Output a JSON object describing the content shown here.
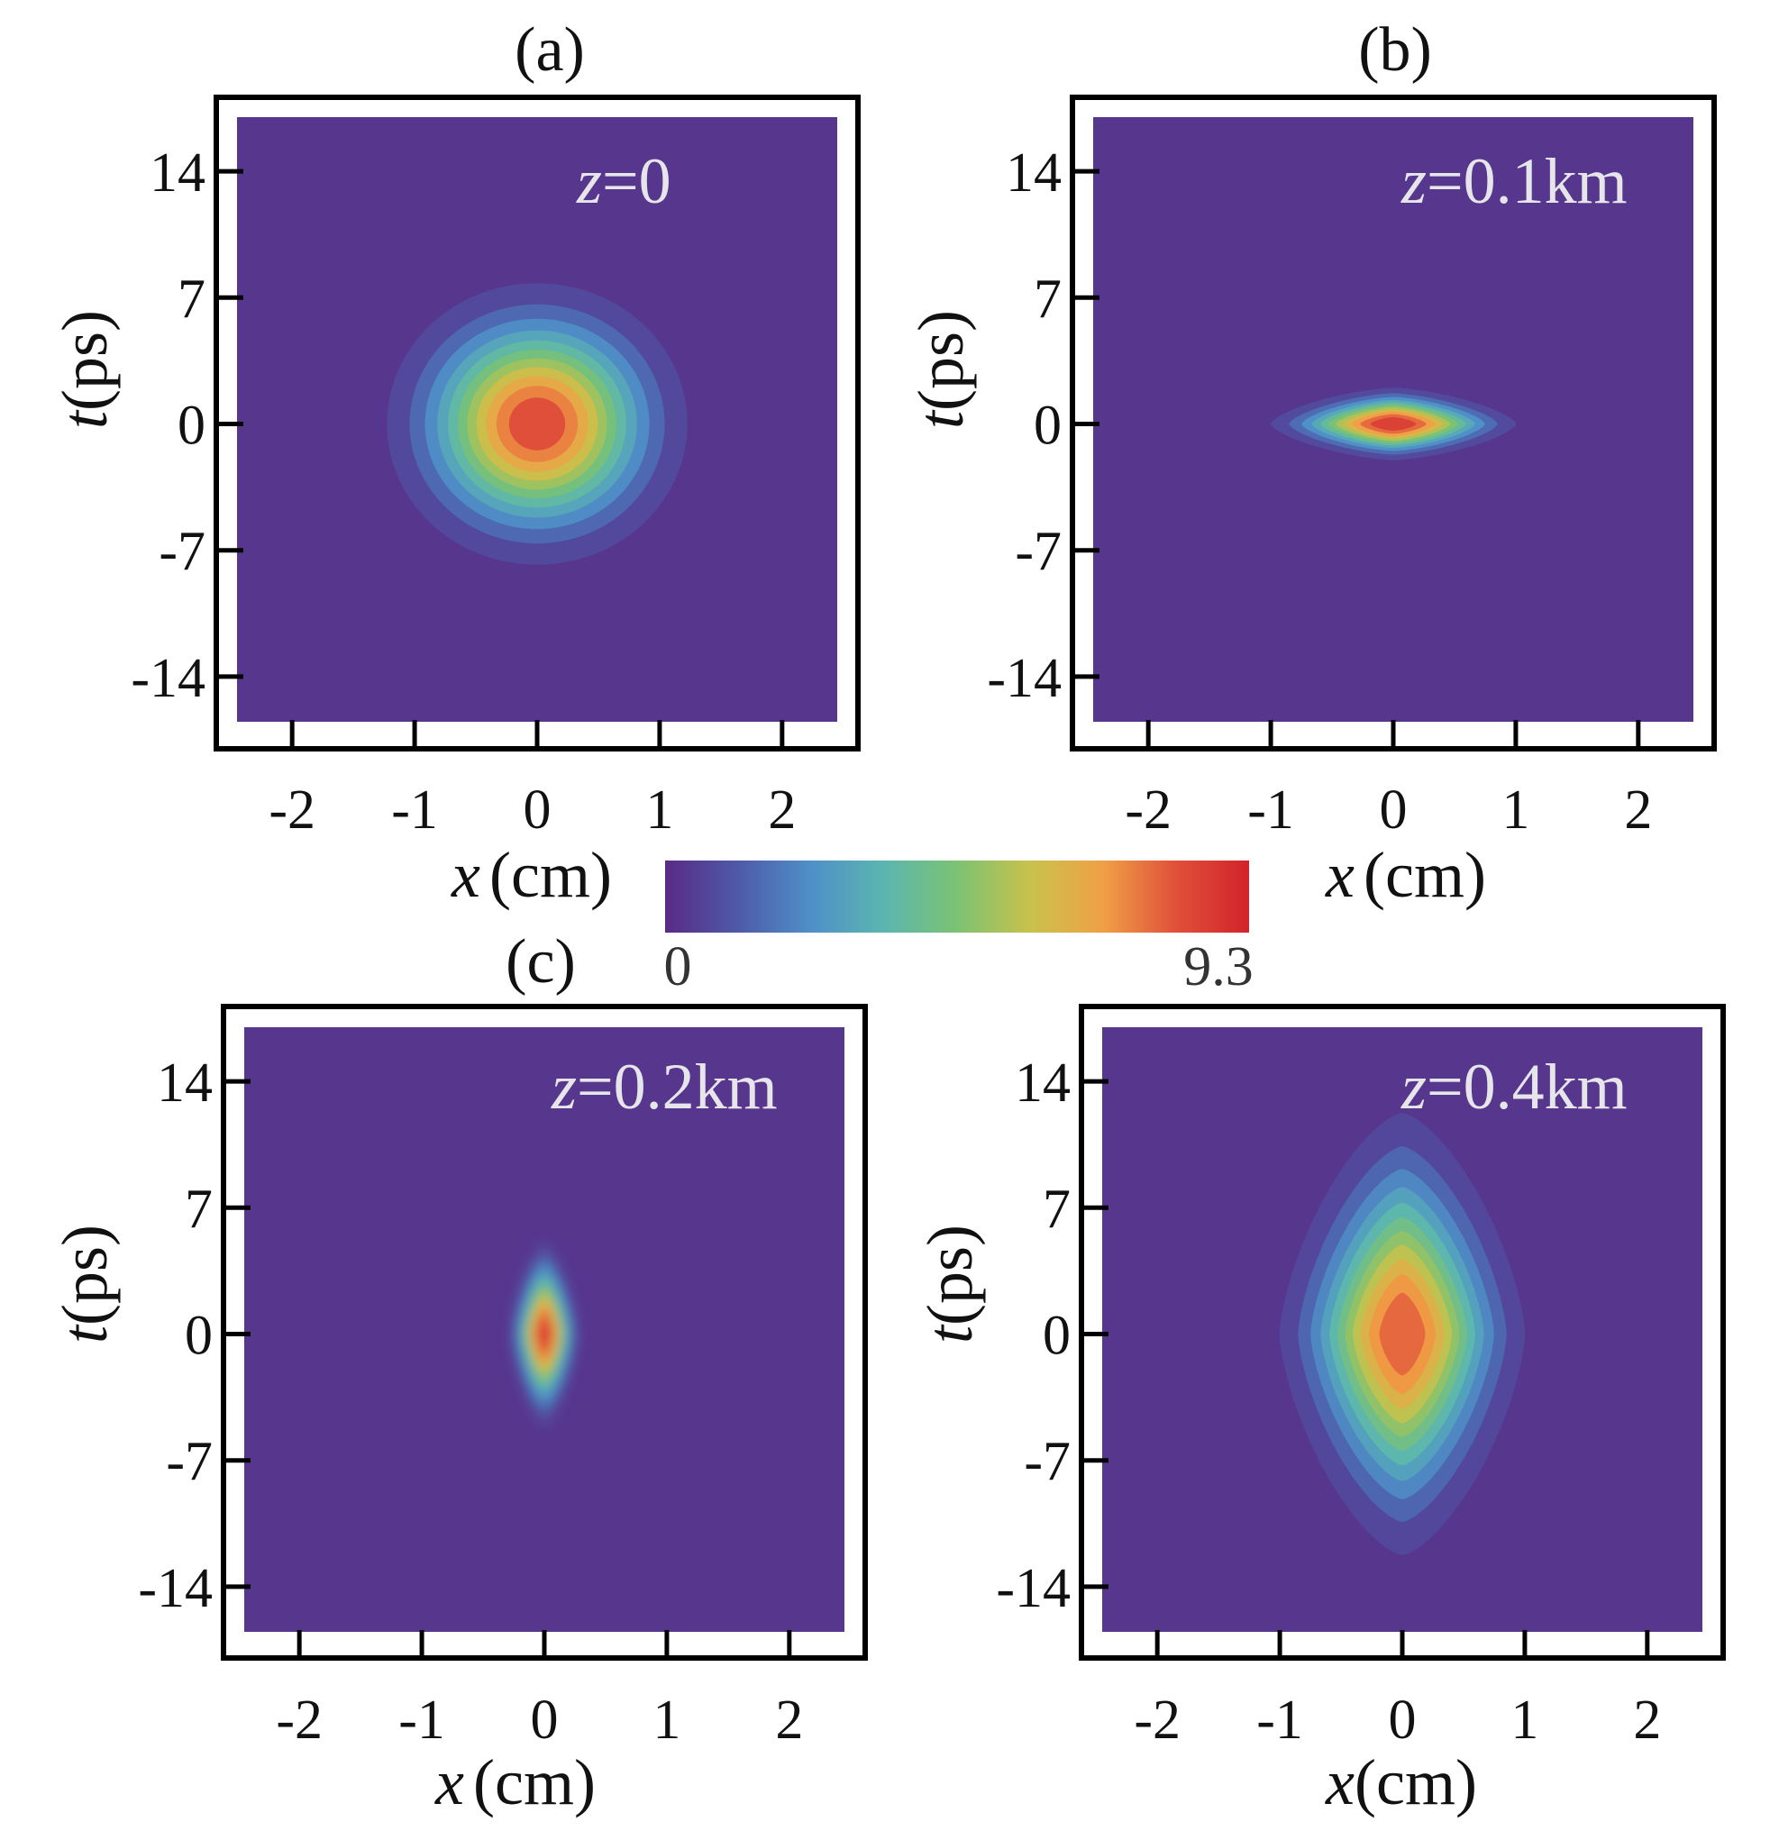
{
  "chart_data": [
    {
      "type": "heatmap",
      "panel": "(a)",
      "annotation": "z=0",
      "z_var": "z",
      "z_value": "=0",
      "xlabel_var": "x",
      "xlabel_unit": "(cm)",
      "ylabel_var": "t",
      "ylabel_unit": "(ps)",
      "xticks": [
        -2,
        -1,
        0,
        1,
        2
      ],
      "xtick_labels": [
        "-2",
        "-1",
        "0",
        "1",
        "2"
      ],
      "yticks": [
        14,
        7,
        0,
        -7,
        -14
      ],
      "ytick_labels": [
        "14",
        "7",
        "0",
        "-7",
        "-14"
      ],
      "xlim": [
        -2.45,
        2.45
      ],
      "ylim": [
        -16.5,
        17.0
      ],
      "field": {
        "peak": 8.9,
        "center": [
          0,
          0
        ],
        "sigma_x": 0.55,
        "sigma_t": 3.5,
        "shape": "gaussian",
        "style": "contour-filled"
      }
    },
    {
      "type": "heatmap",
      "panel": "(b)",
      "annotation": "z=0.1km",
      "z_var": "z",
      "z_value": "=0.1km",
      "xlabel_var": "x",
      "xlabel_unit": "(cm)",
      "ylabel_var": "t",
      "ylabel_unit": "(ps)",
      "xticks": [
        -2,
        -1,
        0,
        1,
        2
      ],
      "xtick_labels": [
        "-2",
        "-1",
        "0",
        "1",
        "2"
      ],
      "yticks": [
        14,
        7,
        0,
        -7,
        -14
      ],
      "ytick_labels": [
        "14",
        "7",
        "0",
        "-7",
        "-14"
      ],
      "xlim": [
        -2.45,
        2.45
      ],
      "ylim": [
        -16.5,
        17.0
      ],
      "field": {
        "peak": 9.3,
        "center": [
          0,
          0
        ],
        "sigma_x": 0.45,
        "sigma_t": 0.9,
        "shape": "diamond",
        "style": "contour-filled"
      }
    },
    {
      "type": "heatmap",
      "panel": "(c)",
      "annotation": "z=0.2km",
      "z_var": "z",
      "z_value": "=0.2km",
      "xlabel_var": "x",
      "xlabel_unit": "(cm)",
      "ylabel_var": "t",
      "ylabel_unit": "(ps)",
      "xticks": [
        -2,
        -1,
        0,
        1,
        2
      ],
      "xtick_labels": [
        "-2",
        "-1",
        "0",
        "1",
        "2"
      ],
      "yticks": [
        14,
        7,
        0,
        -7,
        -14
      ],
      "ytick_labels": [
        "14",
        "7",
        "0",
        "-7",
        "-14"
      ],
      "xlim": [
        -2.45,
        2.45
      ],
      "ylim": [
        -16.5,
        17.0
      ],
      "field": {
        "peak": 9.3,
        "center": [
          0,
          0
        ],
        "sigma_x": 0.13,
        "sigma_t": 2.3,
        "shape": "diamond",
        "style": "smooth"
      }
    },
    {
      "type": "heatmap",
      "panel": "",
      "annotation": "z=0.4km",
      "z_var": "z",
      "z_value": "=0.4km",
      "xlabel_var": "x",
      "xlabel_unit": "(cm)",
      "ylabel_var": "t",
      "ylabel_unit": "(ps)",
      "xticks": [
        -2,
        -1,
        0,
        1,
        2
      ],
      "xtick_labels": [
        "-2",
        "-1",
        "0",
        "1",
        "2"
      ],
      "yticks": [
        14,
        7,
        0,
        -7,
        -14
      ],
      "ytick_labels": [
        "14",
        "7",
        "0",
        "-7",
        "-14"
      ],
      "xlim": [
        -2.45,
        2.45
      ],
      "ylim": [
        -16.5,
        17.0
      ],
      "field": {
        "peak": 8.5,
        "center": [
          0,
          0
        ],
        "sigma_x": 0.45,
        "sigma_t": 5.5,
        "shape": "diamond",
        "style": "contour-filled"
      }
    }
  ],
  "colorbar": {
    "min": 0,
    "max": 9.3,
    "min_label": "0",
    "max_label": "9.3",
    "colors": [
      "#5a2a86",
      "#4e5aa8",
      "#4f90c8",
      "#5bb6b0",
      "#7cc273",
      "#c8c24c",
      "#f0a046",
      "#e0503a",
      "#d2232a"
    ]
  }
}
